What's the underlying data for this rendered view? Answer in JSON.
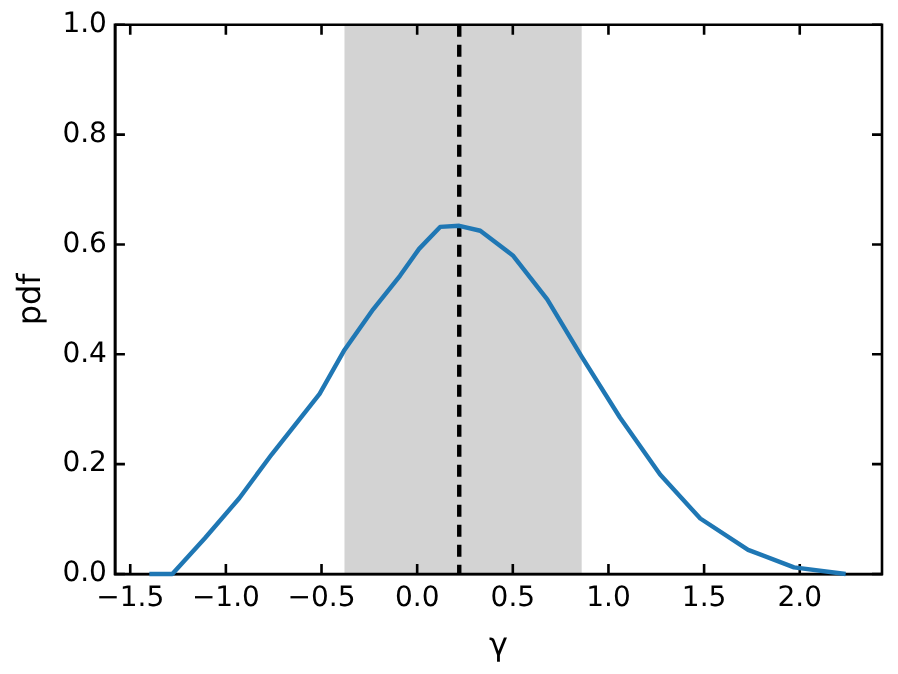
{
  "chart_data": {
    "type": "line",
    "xlabel": "γ",
    "ylabel": "pdf",
    "xlim": [
      -1.58,
      2.43
    ],
    "xticks": [
      {
        "value": -1.5,
        "label": "−1.5"
      },
      {
        "value": -1,
        "label": "−1.0"
      },
      {
        "value": -0.5,
        "label": "−0.5"
      },
      {
        "value": 0,
        "label": "0.0"
      },
      {
        "value": 0.5,
        "label": "0.5"
      },
      {
        "value": 1,
        "label": "1.0"
      },
      {
        "value": 1.5,
        "label": "1.5"
      },
      {
        "value": 2,
        "label": "2.0"
      }
    ],
    "ylim": [
      0,
      1
    ],
    "yticks": [
      {
        "value": 0,
        "label": "0.0"
      },
      {
        "value": 0.2,
        "label": "0.2"
      },
      {
        "value": 0.4,
        "label": "0.4"
      },
      {
        "value": 0.6,
        "label": "0.6"
      },
      {
        "value": 0.8,
        "label": "0.8"
      },
      {
        "value": 1,
        "label": "1.0"
      }
    ],
    "grid": false,
    "legend": false,
    "marker": "none",
    "series": [
      {
        "color": "#1f77b4",
        "line_style": "solid",
        "x": [
          -1.4,
          -1.28,
          -1.11,
          -0.93,
          -0.76,
          -0.51,
          -0.38,
          -0.23,
          -0.09,
          0.01,
          0.12,
          0.22,
          0.33,
          0.5,
          0.68,
          0.86,
          1.06,
          1.27,
          1.48,
          1.73,
          1.97,
          2.24
        ],
        "values": [
          0,
          0,
          0.065,
          0.138,
          0.218,
          0.328,
          0.408,
          0.482,
          0.543,
          0.592,
          0.632,
          0.634,
          0.625,
          0.58,
          0.5,
          0.396,
          0.285,
          0.181,
          0.101,
          0.044,
          0.012,
          0
        ]
      }
    ],
    "bands": [
      {
        "axis": "x",
        "from": -0.38,
        "to": 0.86,
        "color": "#d3d3d3"
      }
    ],
    "ref_lines": [
      {
        "axis": "x",
        "value": 0.22,
        "color": "#000000",
        "line_style": "dashed"
      }
    ]
  }
}
